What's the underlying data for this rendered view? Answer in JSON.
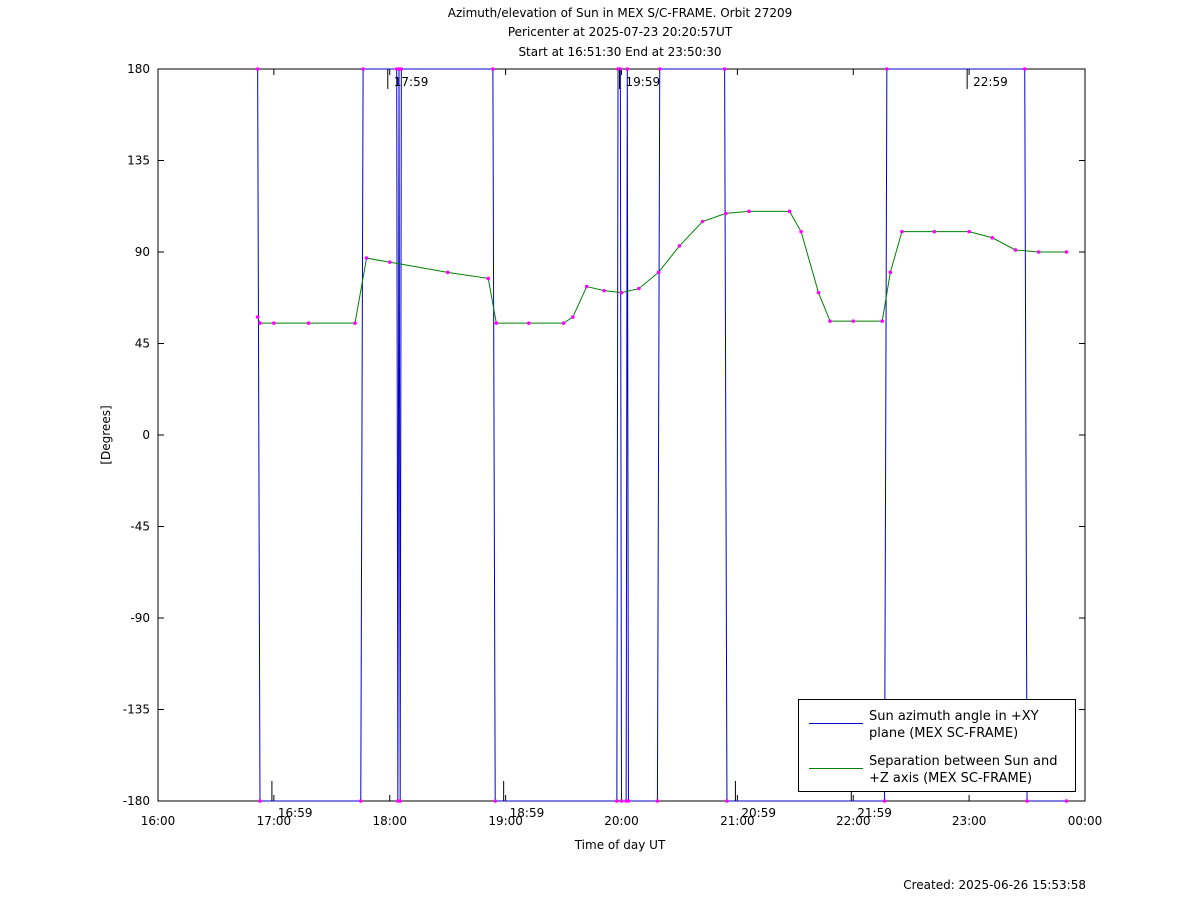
{
  "chart_data": {
    "type": "line",
    "title": "Azimuth/elevation of Sun in MEX S/C-FRAME.  Orbit 27209",
    "subtitle": [
      "Pericenter at 2025-07-23 20:20:57UT",
      "Start at 16:51:30 End at 23:50:30"
    ],
    "x_label": "Time of day UT",
    "y_label": "[Degrees]",
    "footer": "Created: 2025-06-26 15:53:58",
    "xlim": [
      16,
      24
    ],
    "xticks": [
      {
        "value": 16,
        "label": "16:00"
      },
      {
        "value": 17,
        "label": "17:00"
      },
      {
        "value": 18,
        "label": "18:00"
      },
      {
        "value": 19,
        "label": "19:00"
      },
      {
        "value": 20,
        "label": "20:00"
      },
      {
        "value": 21,
        "label": "21:00"
      },
      {
        "value": 22,
        "label": "22:00"
      },
      {
        "value": 23,
        "label": "23:00"
      },
      {
        "value": 24,
        "label": "00:00"
      }
    ],
    "ylim": [
      -180,
      180
    ],
    "yticks": [
      180,
      135,
      90,
      45,
      0,
      -45,
      -90,
      -135,
      -180
    ],
    "grid": false,
    "legend": "lower right",
    "marker_color": "#ff00ff",
    "series": [
      {
        "name": "Sun azimuth angle in +XY plane (MEX SC-FRAME)",
        "color": "#0000cc",
        "x": [
          16.86,
          16.88,
          17.75,
          17.77,
          18.06,
          18.07,
          18.08,
          18.09,
          18.1,
          18.89,
          18.91,
          19.96,
          19.97,
          19.99,
          20.0,
          20.04,
          20.05,
          20.06,
          20.31,
          20.33,
          20.89,
          20.91,
          22.27,
          22.29,
          23.48,
          23.5,
          23.84
        ],
        "values": [
          180,
          -180,
          -180,
          180,
          180,
          -180,
          180,
          -180,
          180,
          180,
          -180,
          -180,
          180,
          180,
          -180,
          -180,
          180,
          -180,
          -180,
          180,
          180,
          -180,
          -180,
          180,
          180,
          -180,
          -180
        ]
      },
      {
        "name": "Separation between Sun and +Z axis (MEX SC-FRAME)",
        "color": "#008000",
        "x": [
          16.86,
          16.88,
          17.0,
          17.3,
          17.7,
          17.8,
          18.0,
          18.5,
          18.85,
          18.92,
          19.2,
          19.5,
          19.58,
          19.7,
          19.85,
          20.0,
          20.15,
          20.32,
          20.5,
          20.7,
          20.9,
          21.1,
          21.45,
          21.55,
          21.7,
          21.8,
          22.0,
          22.25,
          22.32,
          22.42,
          22.7,
          23.0,
          23.2,
          23.4,
          23.6,
          23.84
        ],
        "values": [
          58,
          55,
          55,
          55,
          55,
          87,
          85,
          80,
          77,
          55,
          55,
          55,
          58,
          73,
          71,
          70,
          72,
          80,
          93,
          105,
          109,
          110,
          110,
          100,
          70,
          56,
          56,
          56,
          80,
          100,
          100,
          100,
          97,
          91,
          90,
          90
        ]
      }
    ],
    "annotations": [
      {
        "text": "16:59",
        "x": 16.983,
        "y": -180
      },
      {
        "text": "17:59",
        "x": 17.983,
        "y": 180
      },
      {
        "text": "18:59",
        "x": 18.983,
        "y": -180
      },
      {
        "text": "19:59",
        "x": 19.983,
        "y": 180
      },
      {
        "text": "20:59",
        "x": 20.983,
        "y": -180
      },
      {
        "text": "21:59",
        "x": 21.983,
        "y": -180
      },
      {
        "text": "22:59",
        "x": 22.983,
        "y": 180
      }
    ]
  }
}
